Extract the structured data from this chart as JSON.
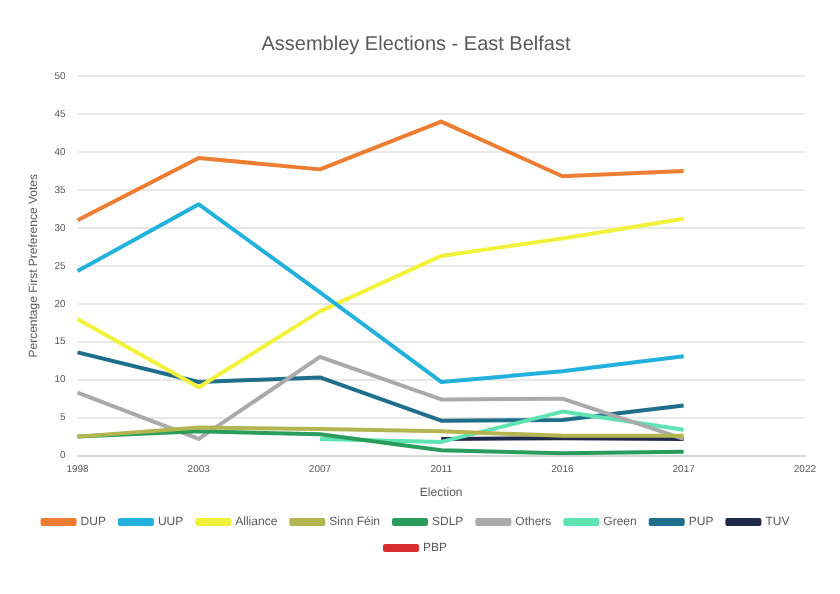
{
  "chart_data": {
    "type": "line",
    "title": "Assembley Elections - East Belfast",
    "xlabel": "Election",
    "ylabel": "Percentage First Preference Votes",
    "categories": [
      "1998",
      "2003",
      "2007",
      "2011",
      "2016",
      "2017",
      "2022"
    ],
    "series": [
      {
        "name": "DUP",
        "color": "#ed7d31",
        "values": [
          31,
          39.2,
          37.7,
          44,
          36.8,
          37.5,
          null
        ]
      },
      {
        "name": "UUP",
        "color": "#22b0dc",
        "values": [
          24.3,
          33.1,
          21.5,
          9.7,
          11.1,
          13.1,
          null
        ]
      },
      {
        "name": "Alliance",
        "color": "#f2f23c",
        "values": [
          18,
          9,
          19,
          26.3,
          28.6,
          31.2,
          null
        ]
      },
      {
        "name": "Sinn Féin",
        "color": "#b3b650",
        "values": [
          2.5,
          3.7,
          3.5,
          3.2,
          2.6,
          2.6,
          null
        ]
      },
      {
        "name": "SDLP",
        "color": "#2a9d5c",
        "values": [
          2.5,
          3.2,
          2.8,
          0.7,
          0.3,
          0.5,
          null
        ]
      },
      {
        "name": "Others",
        "color": "#aaaaaa",
        "values": [
          8.3,
          2.2,
          13,
          7.4,
          7.5,
          2.2,
          null
        ]
      },
      {
        "name": "Green",
        "color": "#5ee3b2",
        "values": [
          null,
          null,
          2.2,
          1.8,
          5.8,
          3.4,
          null
        ]
      },
      {
        "name": "PUP",
        "color": "#1f6e8c",
        "values": [
          13.6,
          9.7,
          10.3,
          4.6,
          4.7,
          6.6,
          null
        ]
      },
      {
        "name": "TUV",
        "color": "#1f2a4a",
        "values": [
          null,
          null,
          null,
          2.2,
          2.3,
          2.2,
          null
        ]
      },
      {
        "name": "PBP",
        "color": "#d62e2e",
        "values": [
          null,
          null,
          null,
          null,
          null,
          null,
          null
        ]
      }
    ],
    "ylim": [
      0,
      50
    ],
    "yticks": [
      0,
      5,
      10,
      15,
      20,
      25,
      30,
      35,
      40,
      45,
      50
    ],
    "grid": "y",
    "legend": "bottom",
    "marker": "none",
    "line_style": "solid"
  }
}
